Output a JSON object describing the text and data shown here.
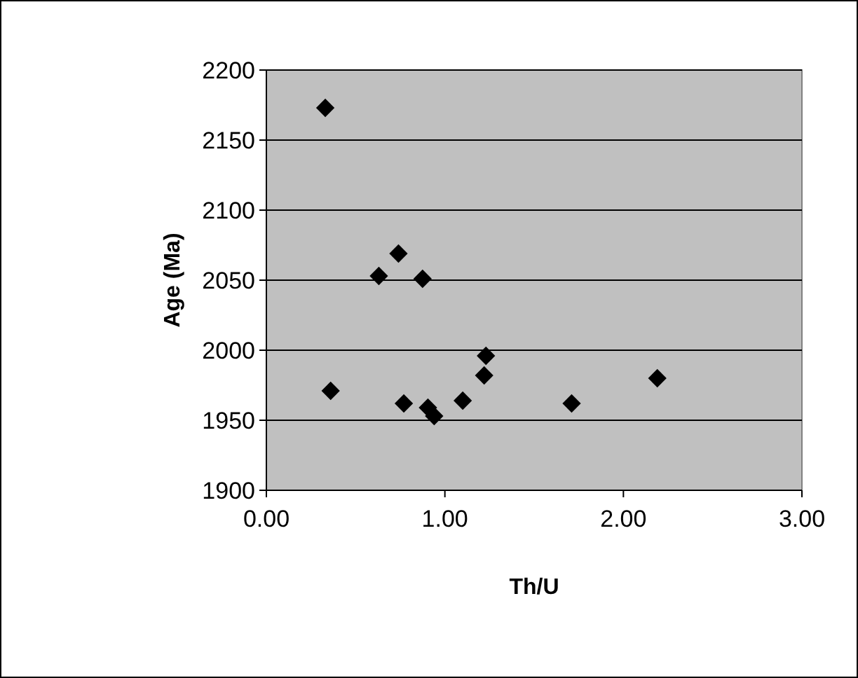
{
  "chart_data": {
    "type": "scatter",
    "xlabel": "Th/U",
    "ylabel": "Age (Ma)",
    "x": [
      0.33,
      0.36,
      0.63,
      0.74,
      0.875,
      0.77,
      0.905,
      0.94,
      1.1,
      1.22,
      1.23,
      1.71,
      2.19
    ],
    "series": [
      {
        "color": "#000000",
        "values": [
          2173,
          1971,
          2053,
          2069,
          2051,
          1962,
          1959,
          1953,
          1964,
          1982,
          1996,
          1962,
          1980
        ]
      }
    ],
    "xlim": [
      0,
      3
    ],
    "xticks": [
      {
        "value": 0,
        "label": "0.00"
      },
      {
        "value": 1,
        "label": "1.00"
      },
      {
        "value": 2,
        "label": "2.00"
      },
      {
        "value": 3,
        "label": "3.00"
      }
    ],
    "ylim": [
      1900,
      2200
    ],
    "yticks": [
      1900,
      1950,
      2000,
      2050,
      2100,
      2150,
      2200
    ],
    "grid": "y",
    "marker": "diamond"
  }
}
